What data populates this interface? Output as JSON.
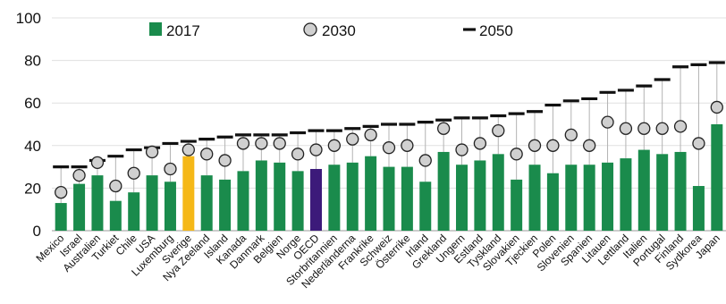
{
  "chart_data": {
    "type": "bar",
    "ylim": [
      0,
      100
    ],
    "yticks": [
      0,
      20,
      40,
      60,
      80,
      100
    ],
    "grid": "horizontal",
    "legend_position": "top",
    "categories": [
      "Mexico",
      "Israel",
      "Australien",
      "Turkiet",
      "Chile",
      "USA",
      "Luxemburg",
      "Sverige",
      "Nya Zeeland",
      "Island",
      "Kanada",
      "Danmark",
      "Belgien",
      "Norge",
      "OECD",
      "Storbritannien",
      "Nederländerna",
      "Frankrike",
      "Schweiz",
      "Österrike",
      "Irland",
      "Grekland",
      "Ungern",
      "Estland",
      "Tyskland",
      "Slovakien",
      "Tjeckien",
      "Polen",
      "Slovenien",
      "Spanien",
      "Litauen",
      "Lettland",
      "Italien",
      "Portugal",
      "Finland",
      "Sydkorea",
      "Japan"
    ],
    "series": [
      {
        "name": "2017",
        "kind": "bar",
        "color": "#1a8b4c",
        "values": [
          13,
          22,
          26,
          14,
          18,
          26,
          23,
          35,
          26,
          24,
          28,
          33,
          32,
          28,
          29,
          31,
          32,
          35,
          30,
          30,
          23,
          37,
          31,
          33,
          36,
          24,
          31,
          27,
          31,
          31,
          32,
          34,
          38,
          36,
          37,
          21,
          50
        ]
      },
      {
        "name": "2030",
        "kind": "marker",
        "color": "#d0d0d0",
        "values": [
          18,
          26,
          32,
          21,
          27,
          37,
          29,
          38,
          36,
          33,
          41,
          41,
          41,
          36,
          38,
          40,
          43,
          45,
          39,
          40,
          33,
          48,
          38,
          41,
          47,
          36,
          40,
          40,
          45,
          40,
          51,
          48,
          48,
          48,
          49,
          41,
          58
        ]
      },
      {
        "name": "2050",
        "kind": "dash",
        "color": "#111111",
        "values": [
          30,
          30,
          33,
          35,
          38,
          39,
          41,
          42,
          43,
          44,
          45,
          45,
          45,
          46,
          47,
          47,
          48,
          49,
          50,
          50,
          51,
          52,
          53,
          53,
          54,
          55,
          56,
          59,
          61,
          62,
          65,
          66,
          68,
          71,
          77,
          78,
          79
        ]
      }
    ],
    "highlight": {
      "Sverige": "#f5b818",
      "OECD": "#3c1a7a"
    }
  }
}
